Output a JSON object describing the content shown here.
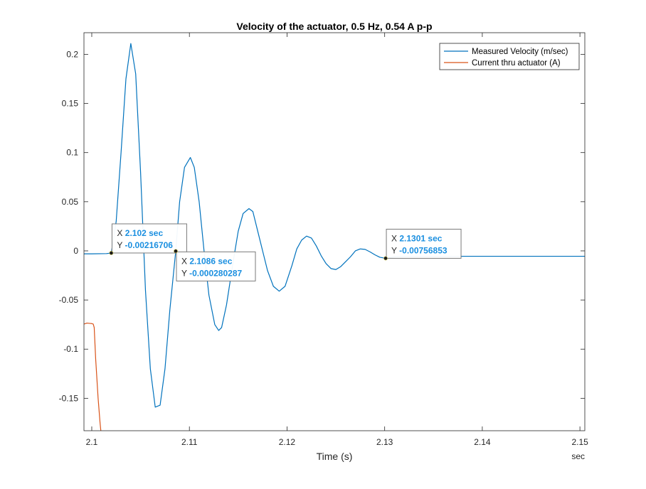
{
  "chart_data": {
    "type": "line",
    "title": "Velocity of the actuator, 0.5 Hz, 0.54 A p-p",
    "xlabel": "Time (s)",
    "x_unit": "sec",
    "ylabel": "",
    "xlim": [
      2.0992,
      2.1505
    ],
    "ylim": [
      -0.183,
      0.222
    ],
    "xticks": [
      2.1,
      2.11,
      2.12,
      2.13,
      2.14,
      2.15
    ],
    "xtick_labels": [
      "2.1",
      "2.11",
      "2.12",
      "2.13",
      "2.14",
      "2.15"
    ],
    "yticks": [
      0.2,
      0.15,
      0.1,
      0.05,
      0,
      -0.05,
      -0.1,
      -0.15
    ],
    "ytick_labels": [
      "0.2",
      "0.15",
      "0.1",
      "0.05",
      "0",
      "-0.05",
      "-0.1",
      "-0.15"
    ],
    "grid": false,
    "legend_position": "top-right",
    "series": [
      {
        "name": "Measured Velocity (m/sec)",
        "color": "#0072BD",
        "x": [
          2.0992,
          2.1,
          2.1015,
          2.102,
          2.1025,
          2.103,
          2.1035,
          2.104,
          2.1045,
          2.105,
          2.1055,
          2.106,
          2.1065,
          2.107,
          2.1075,
          2.108,
          2.1086,
          2.109,
          2.1095,
          2.1101,
          2.1105,
          2.111,
          2.1115,
          2.112,
          2.1126,
          2.113,
          2.1133,
          2.1138,
          2.1145,
          2.115,
          2.1155,
          2.1161,
          2.1165,
          2.117,
          2.1175,
          2.118,
          2.1186,
          2.1192,
          2.1198,
          2.1205,
          2.121,
          2.1215,
          2.122,
          2.1225,
          2.123,
          2.1235,
          2.124,
          2.1245,
          2.125,
          2.1255,
          2.126,
          2.1265,
          2.127,
          2.1275,
          2.128,
          2.1285,
          2.129,
          2.1295,
          2.1301,
          2.131,
          2.132,
          2.134,
          2.136,
          2.138,
          2.14,
          2.145,
          2.1505
        ],
        "y": [
          -0.003,
          -0.003,
          -0.0028,
          -0.0022,
          0.03,
          0.1,
          0.175,
          0.211,
          0.18,
          0.08,
          -0.04,
          -0.12,
          -0.159,
          -0.157,
          -0.12,
          -0.06,
          -0.0003,
          0.05,
          0.085,
          0.095,
          0.085,
          0.05,
          0,
          -0.045,
          -0.075,
          -0.081,
          -0.078,
          -0.055,
          -0.01,
          0.02,
          0.038,
          0.043,
          0.04,
          0.02,
          0,
          -0.02,
          -0.036,
          -0.041,
          -0.036,
          -0.015,
          0.002,
          0.011,
          0.015,
          0.013,
          0.005,
          -0.005,
          -0.013,
          -0.018,
          -0.019,
          -0.016,
          -0.011,
          -0.006,
          0,
          0.002,
          0.0015,
          -0.001,
          -0.004,
          -0.0065,
          -0.0076,
          -0.006,
          -0.0055,
          -0.0055,
          -0.0055,
          -0.0055,
          -0.0055,
          -0.0055,
          -0.0055
        ]
      },
      {
        "name": "Current thru actuator (A)",
        "color": "#D95319",
        "x": [
          2.0992,
          2.0995,
          2.1,
          2.10015,
          2.10025,
          2.1004,
          2.10065,
          2.10085,
          2.101
        ],
        "y": [
          -0.0745,
          -0.0735,
          -0.074,
          -0.0745,
          -0.078,
          -0.11,
          -0.15,
          -0.175,
          -0.19
        ]
      }
    ],
    "datatips": [
      {
        "x_label": "X",
        "x_value": "2.102 sec",
        "y_label": "Y",
        "y_value": "-0.00216706",
        "x": 2.102,
        "y": -0.00216706,
        "box": "above-right"
      },
      {
        "x_label": "X",
        "x_value": "2.1086 sec",
        "y_label": "Y",
        "y_value": "-0.000280287",
        "x": 2.1086,
        "y": -0.000280287,
        "box": "below-right"
      },
      {
        "x_label": "X",
        "x_value": "2.1301 sec",
        "y_label": "Y",
        "y_value": "-0.00756853",
        "x": 2.1301,
        "y": -0.00756853,
        "box": "above-right"
      }
    ]
  }
}
